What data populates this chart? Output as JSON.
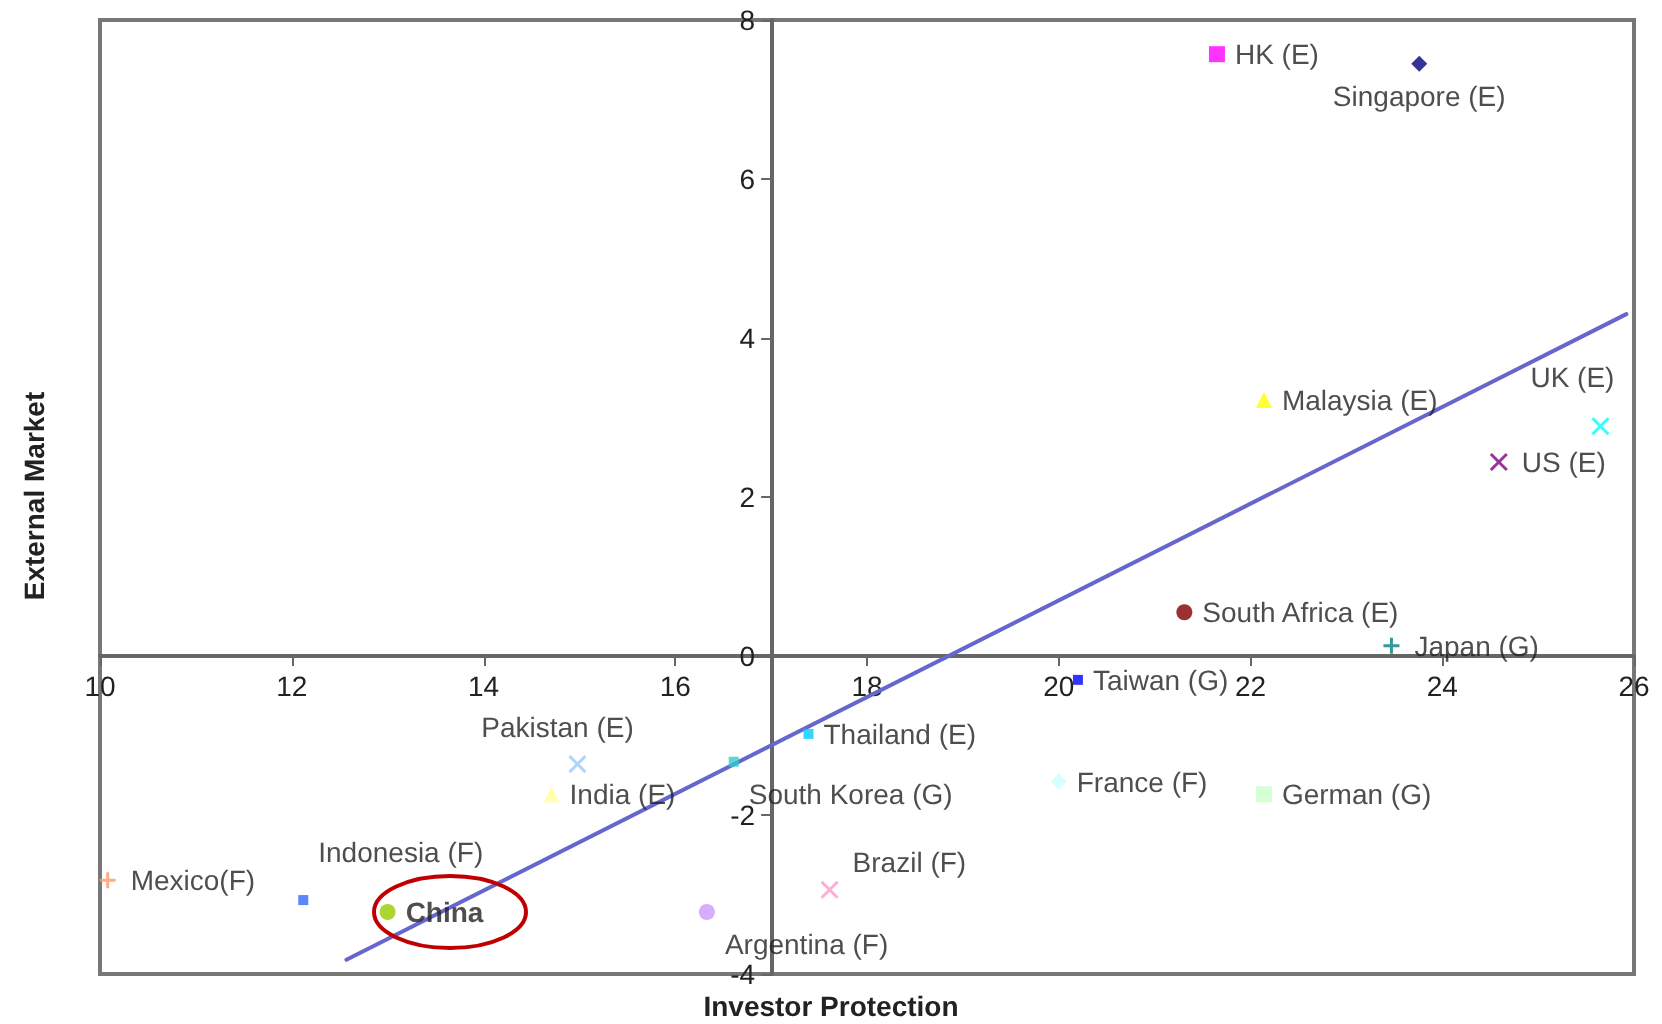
{
  "chart_data": {
    "type": "scatter",
    "xlabel": "Investor Protection",
    "ylabel": "External Market",
    "xlim": [
      10,
      26
    ],
    "xticks": [
      10,
      12,
      14,
      16,
      18,
      20,
      22,
      24,
      26
    ],
    "ylim": [
      -4,
      8
    ],
    "yticks": [
      -4,
      -2,
      0,
      2,
      4,
      6,
      8
    ],
    "grid": false,
    "series": [
      {
        "name": "HK (E)",
        "color": "#ff00ff",
        "marker": "square",
        "x": [
          21.65
        ],
        "values": [
          7.57
        ]
      },
      {
        "name": "Singapore (E)",
        "color": "#000080",
        "marker": "diamond",
        "x": [
          23.76
        ],
        "values": [
          7.45
        ]
      },
      {
        "name": "Malaysia (E)",
        "color": "#ffff00",
        "marker": "triangle",
        "x": [
          22.14
        ],
        "values": [
          3.22
        ]
      },
      {
        "name": "UK (E)",
        "color": "#00ffff",
        "marker": "cross",
        "x": [
          25.65
        ],
        "values": [
          2.89
        ]
      },
      {
        "name": "US (E)",
        "color": "#800080",
        "marker": "cross",
        "x": [
          24.59
        ],
        "values": [
          2.44
        ]
      },
      {
        "name": "South Africa (E)",
        "color": "#800000",
        "marker": "circle",
        "x": [
          21.31
        ],
        "values": [
          0.55
        ]
      },
      {
        "name": "Japan (G)",
        "color": "#008080",
        "marker": "plus",
        "x": [
          23.47
        ],
        "values": [
          0.13
        ]
      },
      {
        "name": "Taiwan (G)",
        "color": "#0000ff",
        "marker": "square",
        "x": [
          20.2
        ],
        "values": [
          -0.3
        ]
      },
      {
        "name": "Thailand (E)",
        "color": "#00ccff",
        "marker": "square",
        "x": [
          17.39
        ],
        "values": [
          -0.98
        ]
      },
      {
        "name": "Pakistan (E)",
        "color": "#99ccff",
        "marker": "cross",
        "x": [
          14.98
        ],
        "values": [
          -1.36
        ]
      },
      {
        "name": "South Korea (G)",
        "color": "#33cccc",
        "marker": "square",
        "x": [
          16.61
        ],
        "values": [
          -1.33
        ]
      },
      {
        "name": "India (E)",
        "color": "#ffff99",
        "marker": "triangle",
        "x": [
          14.71
        ],
        "values": [
          -1.74
        ]
      },
      {
        "name": "France (F)",
        "color": "#ccffff",
        "marker": "diamond",
        "x": [
          20.0
        ],
        "values": [
          -1.58
        ]
      },
      {
        "name": "German (G)",
        "color": "#ccffcc",
        "marker": "square",
        "x": [
          22.14
        ],
        "values": [
          -1.74
        ]
      },
      {
        "name": "Mexico(F)",
        "color": "#ff9966",
        "marker": "plus",
        "x": [
          10.08
        ],
        "values": [
          -2.82
        ]
      },
      {
        "name": "Indonesia (F)",
        "color": "#3366ff",
        "marker": "square",
        "x": [
          12.12
        ],
        "values": [
          -3.07
        ]
      },
      {
        "name": "China",
        "color": "#99cc00",
        "marker": "circle",
        "x": [
          13.0
        ],
        "values": [
          -3.22
        ]
      },
      {
        "name": "Brazil (F)",
        "color": "#ff99cc",
        "marker": "cross",
        "x": [
          17.61
        ],
        "values": [
          -2.94
        ]
      },
      {
        "name": "Argentina (F)",
        "color": "#cc99ff",
        "marker": "circle",
        "x": [
          16.33
        ],
        "values": [
          -3.22
        ]
      },
      {
        "type": "line",
        "color": "#6666cc",
        "marker": "none",
        "x": [
          12.57,
          25.92
        ],
        "values": [
          -3.82,
          4.3
        ]
      }
    ]
  }
}
